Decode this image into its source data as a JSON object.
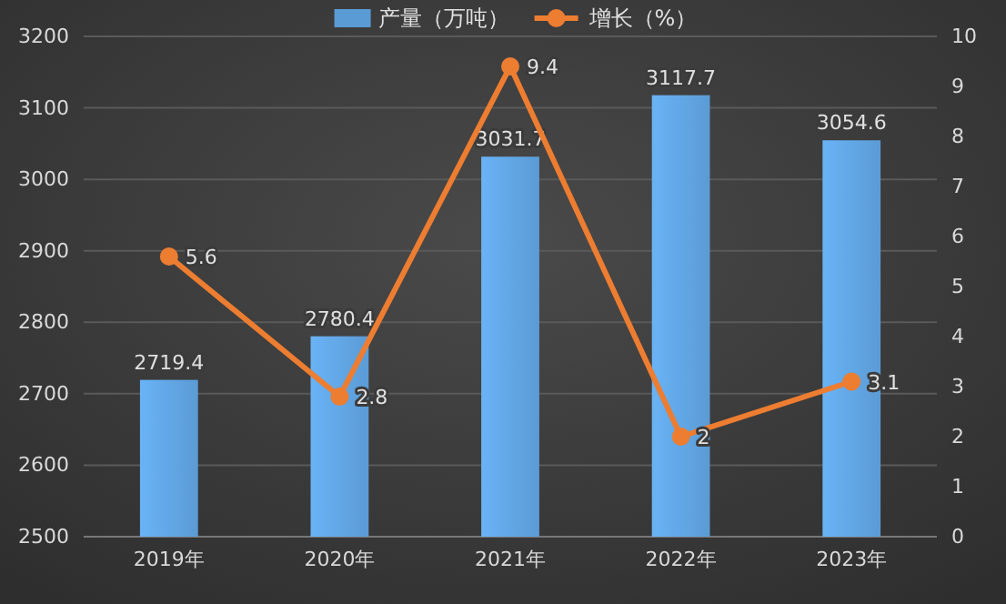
{
  "chart_data": {
    "type": "bar",
    "categories": [
      "2019年",
      "2020年",
      "2021年",
      "2022年",
      "2023年"
    ],
    "series": [
      {
        "name": "产量（万吨）",
        "color": "#5b9bd5",
        "values": [
          2719.4,
          2780.4,
          3031.7,
          3117.7,
          3054.6
        ]
      },
      {
        "name": "增长（%）",
        "type": "line",
        "axis": "y2",
        "color": "#ed7d31",
        "values": [
          5.6,
          2.8,
          9.4,
          2,
          3.1
        ]
      }
    ],
    "ylim": [
      2500,
      3200
    ],
    "yticks": [
      2500,
      2600,
      2700,
      2800,
      2900,
      3000,
      3100,
      3200
    ],
    "y2lim": [
      0,
      10
    ],
    "y2ticks": [
      0,
      1,
      2,
      3,
      4,
      5,
      6,
      7,
      8,
      9,
      10
    ],
    "grid": "y",
    "legend": "top",
    "marker": "circle",
    "line_style": "solid",
    "data_labels": true
  }
}
